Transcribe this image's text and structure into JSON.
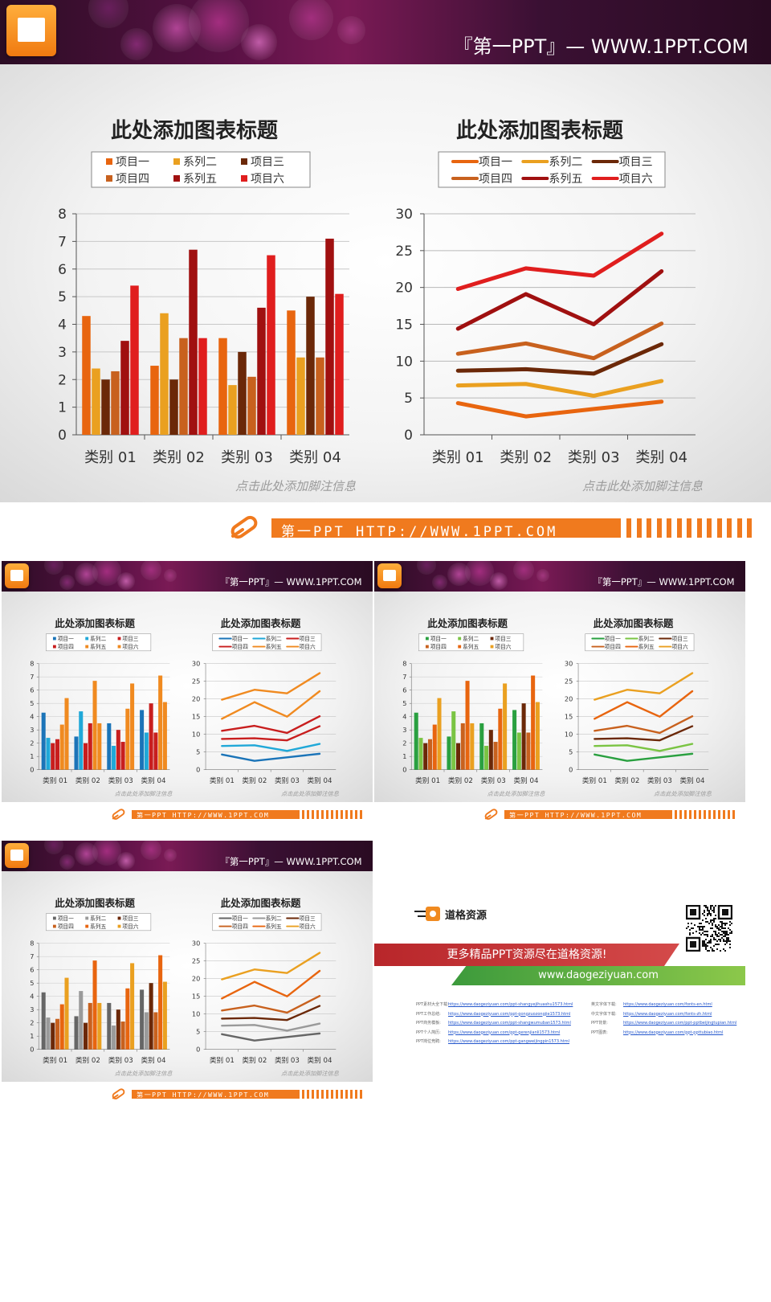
{
  "brand": {
    "name": "『第一PPT』— WWW.1PPT.COM",
    "small": "『第一PPT』— WWW.1PPT.COM"
  },
  "footer": {
    "url": "第一PPT HTTP://WWW.1PPT.COM"
  },
  "footnote": "点击此处添加脚注信息",
  "chart_title": "此处添加图表标题",
  "legend_labels": [
    "项目一",
    "系列二",
    "项目三",
    "项目四",
    "系列五",
    "项目六"
  ],
  "colors": {
    "orange_set": [
      "#e8650f",
      "#eaa020",
      "#6b2808",
      "#c8611e",
      "#a01010",
      "#e01e1e"
    ],
    "blue_set": [
      "#1b74b8",
      "#20a8d8",
      "#c81e1e",
      "#c81e1e",
      "#f08a20",
      "#f08a20"
    ],
    "green_set": [
      "#2aa040",
      "#7ac443",
      "#6b2808",
      "#c8611e",
      "#e8650f",
      "#eaa020"
    ],
    "gray_set": [
      "#666666",
      "#9a9a9a",
      "#6b2808",
      "#c8611e",
      "#e8650f",
      "#eaa020"
    ],
    "accent": "#f07a1e"
  },
  "chart_data": {
    "type": "bar",
    "categories": [
      "类别 01",
      "类别 02",
      "类别 03",
      "类别 04"
    ],
    "bar": {
      "ylim": [
        0,
        8
      ],
      "yticks": [
        0,
        1,
        2,
        3,
        4,
        5,
        6,
        7,
        8
      ],
      "series": [
        {
          "name": "项目一",
          "values": [
            4.3,
            2.5,
            3.5,
            4.5
          ]
        },
        {
          "name": "系列二",
          "values": [
            2.4,
            4.4,
            1.8,
            2.8
          ]
        },
        {
          "name": "项目三",
          "values": [
            2.0,
            2.0,
            3.0,
            5.0
          ]
        },
        {
          "name": "项目四",
          "values": [
            2.3,
            3.5,
            2.1,
            2.8
          ]
        },
        {
          "name": "系列五",
          "values": [
            3.4,
            6.7,
            4.6,
            7.1
          ]
        },
        {
          "name": "项目六",
          "values": [
            5.4,
            3.5,
            6.5,
            5.1
          ]
        }
      ]
    },
    "line": {
      "ylim": [
        0,
        30
      ],
      "yticks": [
        0,
        5,
        10,
        15,
        20,
        25,
        30
      ],
      "series": [
        {
          "name": "项目一",
          "values": [
            4.3,
            2.5,
            3.5,
            4.5
          ]
        },
        {
          "name": "系列二",
          "values": [
            6.7,
            6.9,
            5.3,
            7.3
          ]
        },
        {
          "name": "项目三",
          "values": [
            8.7,
            8.9,
            8.3,
            12.3
          ]
        },
        {
          "name": "项目四",
          "values": [
            11.0,
            12.4,
            10.4,
            15.1
          ]
        },
        {
          "name": "系列五",
          "values": [
            14.4,
            19.1,
            15.0,
            22.2
          ]
        },
        {
          "name": "项目六",
          "values": [
            19.8,
            22.6,
            21.6,
            27.3
          ]
        }
      ]
    }
  },
  "promo": {
    "logo_text": "道格资源",
    "headline": "更多精品PPT资源尽在道格资源!",
    "url": "www.daogeziyuan.com",
    "links_left": [
      {
        "label": "PPT素材大全下载:",
        "url": "https://www.daogeziyuan.com/ppt-shangyejihuashu1573.html"
      },
      {
        "label": "PPT工作总结:",
        "url": "https://www.daogeziyuan.com/ppt-gongzuozongjie1573.html"
      },
      {
        "label": "PPT商务模板:",
        "url": "https://www.daogeziyuan.com/ppt-shangwumuban1573.html"
      },
      {
        "label": "PPT个人简历:",
        "url": "https://www.daogeziyuan.com/ppt-gerenjianli1573.html"
      },
      {
        "label": "PPT岗位竞聘:",
        "url": "https://www.daogeziyuan.com/ppt-gangweijingpin1573.html"
      }
    ],
    "links_right": [
      {
        "label": "英文字体下载:",
        "url": "https://www.daogeziyuan.com/fonts-en.html"
      },
      {
        "label": "中文字体下载:",
        "url": "https://www.daogeziyuan.com/fonts-zh.html"
      },
      {
        "label": "PPT背景:",
        "url": "https://www.daogeziyuan.com/ppt-pptbeijingtupian.html"
      },
      {
        "label": "PPT图表:",
        "url": "https://www.daogeziyuan.com/ppt-ppttubiao.html"
      }
    ]
  }
}
